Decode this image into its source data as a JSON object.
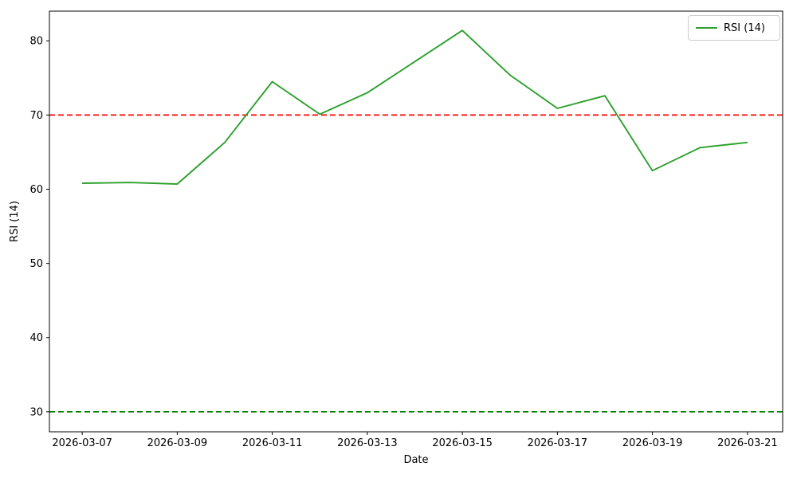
{
  "figure": {
    "background": "#ffffff"
  },
  "chart_data": {
    "type": "line",
    "title": "",
    "xlabel": "Date",
    "ylabel": "RSI (14)",
    "x": [
      "2026-03-07",
      "2026-03-08",
      "2026-03-09",
      "2026-03-10",
      "2026-03-11",
      "2026-03-12",
      "2026-03-13",
      "2026-03-14",
      "2026-03-15",
      "2026-03-16",
      "2026-03-17",
      "2026-03-18",
      "2026-03-19",
      "2026-03-20",
      "2026-03-21"
    ],
    "series": [
      {
        "name": "RSI (14)",
        "color": "#2ca02c",
        "style": "solid",
        "line_width": 1.9,
        "values": [
          60.8,
          60.9,
          60.7,
          66.3,
          74.5,
          70.1,
          73.0,
          77.2,
          81.4,
          75.4,
          70.9,
          72.6,
          62.5,
          65.6,
          66.3
        ]
      }
    ],
    "reference_lines": [
      {
        "name": "overbought-level",
        "value": 70,
        "color": "#ff0000",
        "style": "dashed",
        "line_width": 1.8
      },
      {
        "name": "oversold-level",
        "value": 30,
        "color": "#008000",
        "style": "dashed",
        "line_width": 1.8
      }
    ],
    "xticks": [
      "2026-03-07",
      "2026-03-09",
      "2026-03-11",
      "2026-03-13",
      "2026-03-15",
      "2026-03-17",
      "2026-03-19",
      "2026-03-21"
    ],
    "yticks": [
      30,
      40,
      50,
      60,
      70,
      80
    ],
    "ylim": [
      27.3,
      84.0
    ],
    "xlim_index": [
      -0.69,
      14.74
    ],
    "grid": false,
    "legend_position": "upper right",
    "axis_color": "#000000"
  }
}
